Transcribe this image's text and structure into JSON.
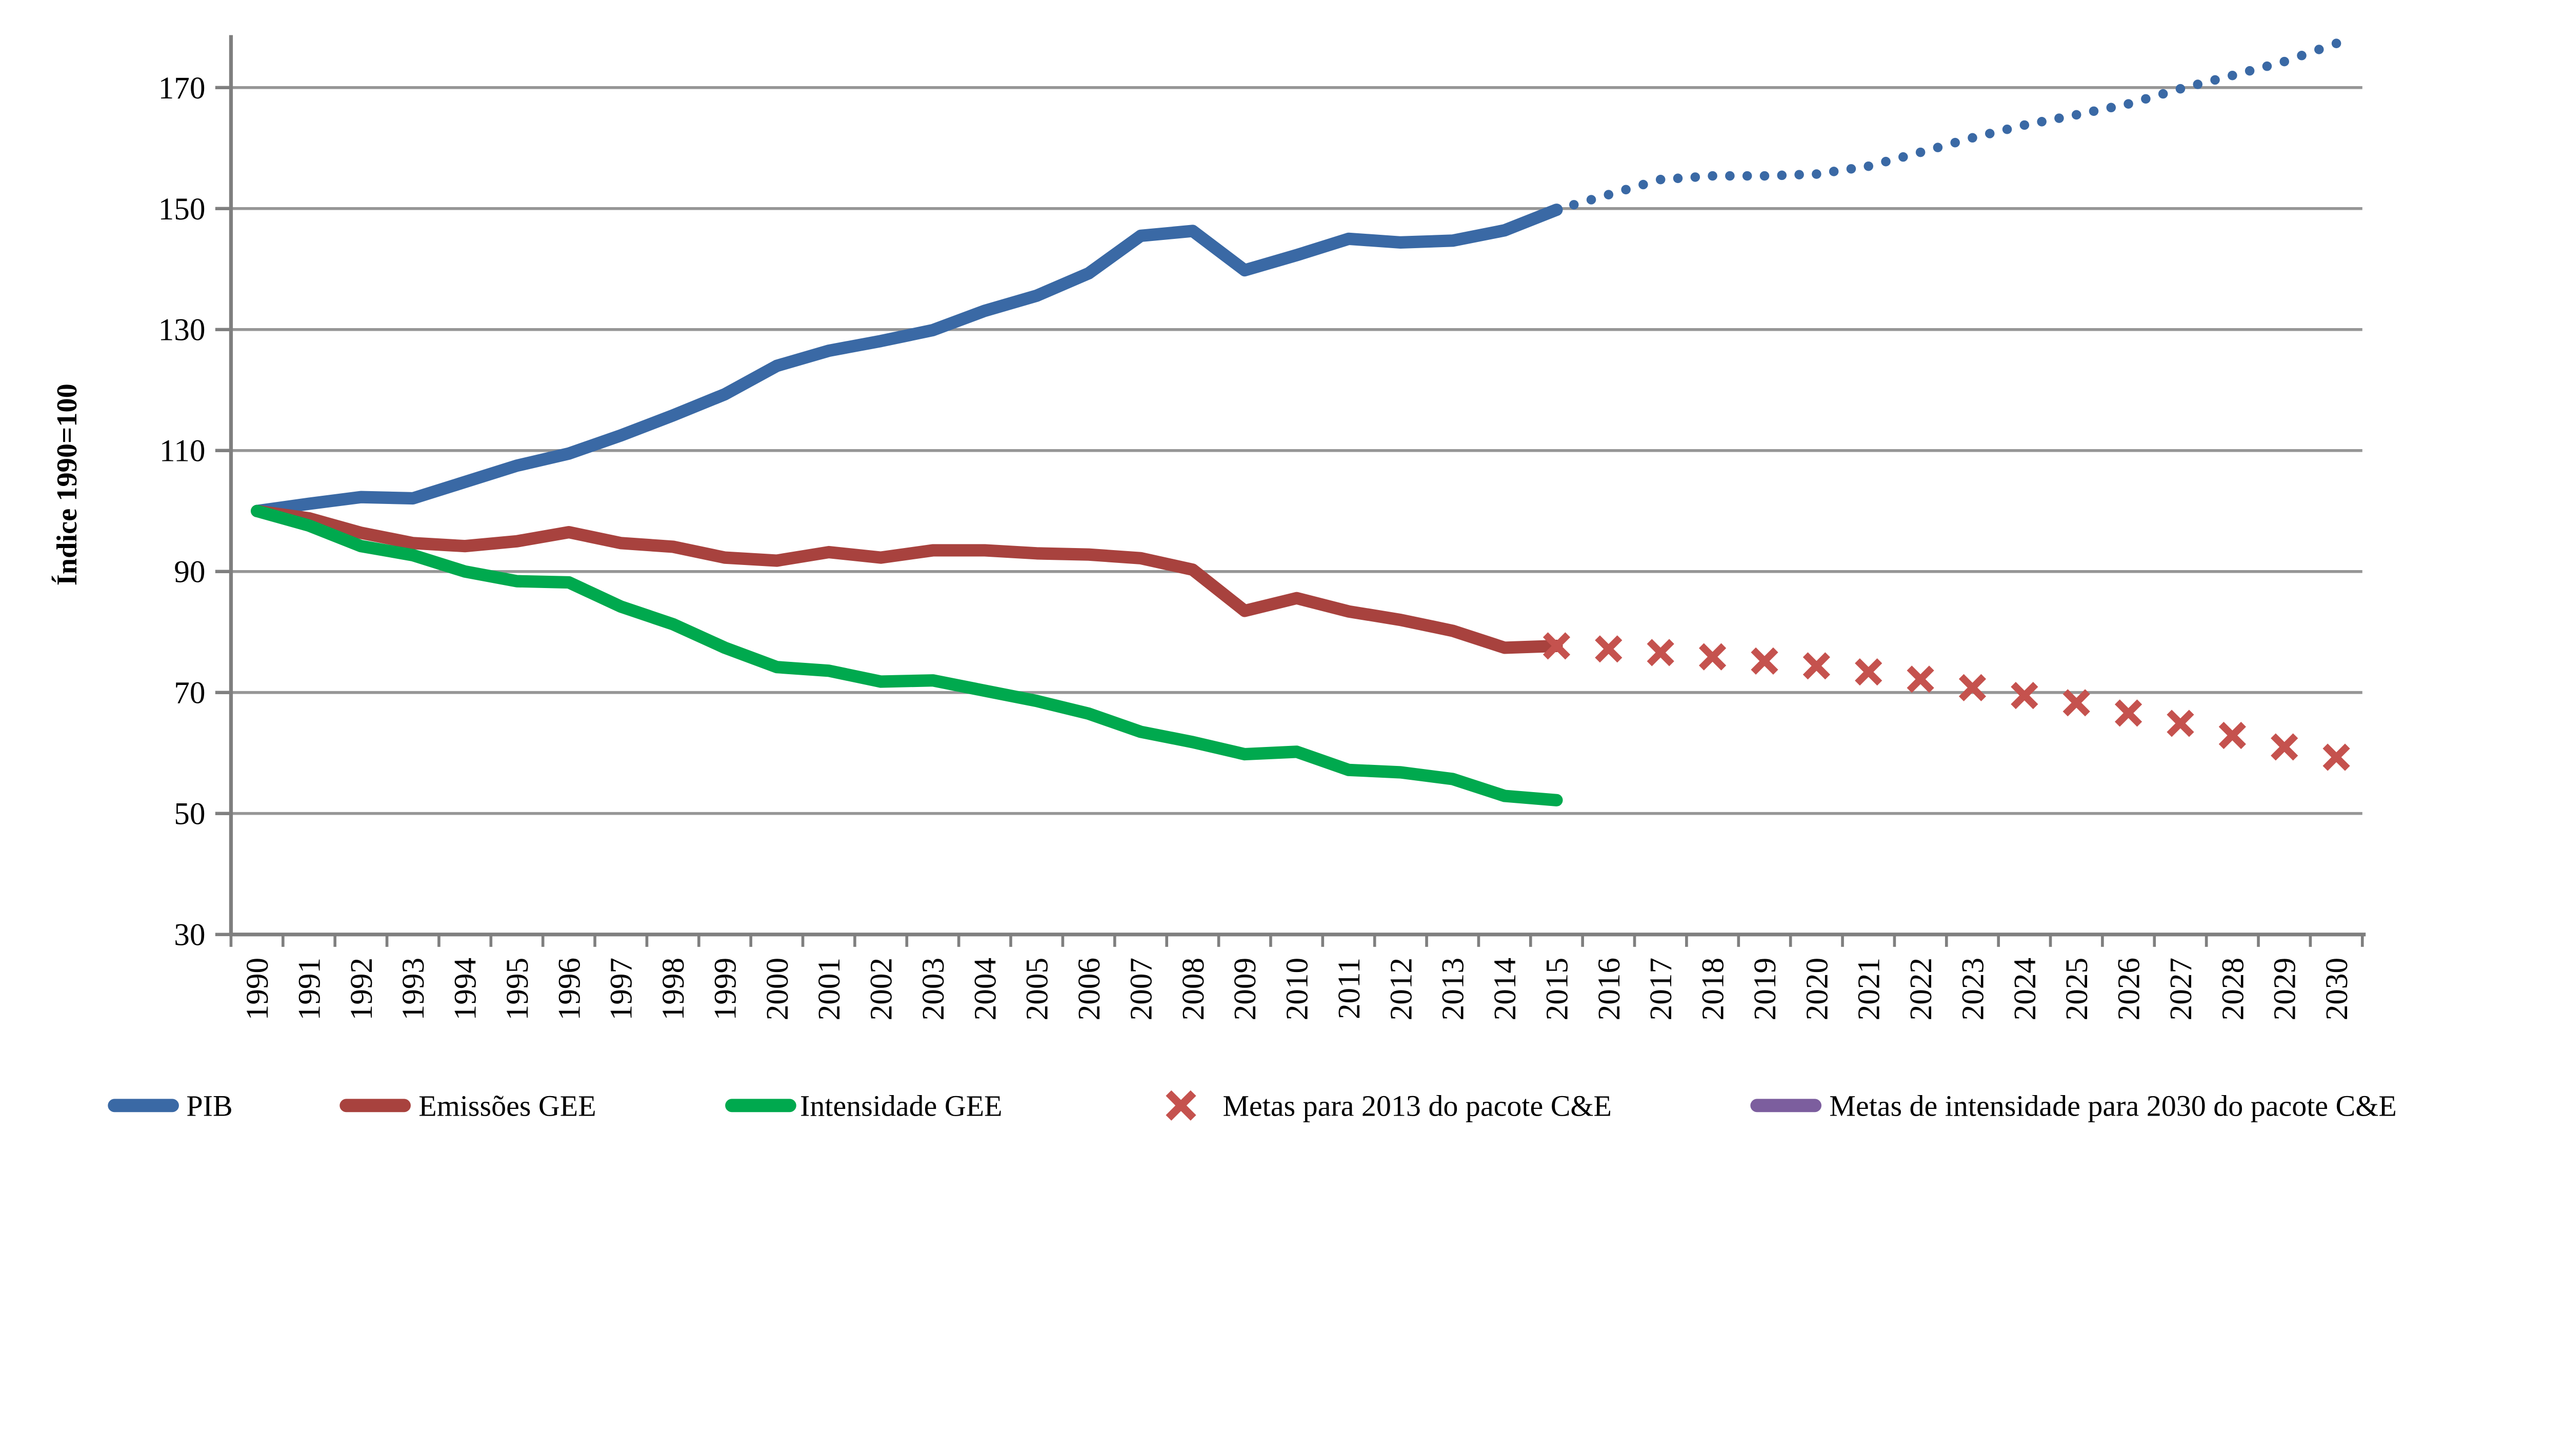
{
  "figure": {
    "background": "#FFFFFF"
  },
  "chart_data": {
    "type": "line",
    "title": "",
    "xlabel": "",
    "ylabel": "Índice 1990=100",
    "ylim": [
      30,
      182
    ],
    "yticks": [
      30,
      50,
      70,
      90,
      110,
      130,
      150,
      170
    ],
    "grid": true,
    "legend_position": "bottom",
    "axis_color": "#7F7F7F",
    "grid_color": "#969696",
    "categories": [
      "1990",
      "1991",
      "1992",
      "1993",
      "1994",
      "1995",
      "1996",
      "1997",
      "1998",
      "1999",
      "2000",
      "2001",
      "2002",
      "2003",
      "2004",
      "2005",
      "2006",
      "2007",
      "2008",
      "2009",
      "2010",
      "2011",
      "2012",
      "2013",
      "2014",
      "2015",
      "2016",
      "2017",
      "2018",
      "2019",
      "2020",
      "2021",
      "2022",
      "2023",
      "2024",
      "2025",
      "2026",
      "2027",
      "2028",
      "2029",
      "2030"
    ],
    "series": [
      {
        "name": "PIB",
        "type": "line",
        "style": "solid",
        "color": "#3A69A5",
        "start_year": 1990,
        "values": [
          100.0,
          101.2,
          102.3,
          102.1,
          104.8,
          107.5,
          109.5,
          112.5,
          115.8,
          119.3,
          124.0,
          126.5,
          128.1,
          129.9,
          133.1,
          135.6,
          139.3,
          145.5,
          146.3,
          139.8,
          142.3,
          145.0,
          144.4,
          144.7,
          146.4,
          149.8
        ]
      },
      {
        "name": "PIB (projeção)",
        "type": "line",
        "style": "dotted",
        "color": "#3A69A5",
        "start_year": 2015,
        "show_in_legend": false,
        "values": [
          149.8,
          152.3,
          154.8,
          155.4,
          155.4,
          155.7,
          157.0,
          159.3,
          161.7,
          163.8,
          165.5,
          167.3,
          169.8,
          172.0,
          174.3,
          177.3
        ]
      },
      {
        "name": "Emissões GEE",
        "type": "line",
        "style": "solid",
        "color": "#A8423E",
        "start_year": 1990,
        "values": [
          100.0,
          98.8,
          96.4,
          94.7,
          94.2,
          95.0,
          96.5,
          94.7,
          94.1,
          92.3,
          91.8,
          93.2,
          92.3,
          93.5,
          93.5,
          93.0,
          92.8,
          92.2,
          90.3,
          83.5,
          85.6,
          83.4,
          82.0,
          80.2,
          77.4,
          77.7
        ]
      },
      {
        "name": "Intensidade GEE",
        "type": "line",
        "style": "solid",
        "color": "#00A94E",
        "start_year": 1990,
        "values": [
          100.0,
          97.6,
          94.2,
          92.7,
          90.0,
          88.4,
          88.2,
          84.2,
          81.3,
          77.4,
          74.2,
          73.6,
          71.8,
          72.0,
          70.3,
          68.6,
          66.5,
          63.5,
          61.8,
          59.8,
          60.2,
          57.2,
          56.8,
          55.7,
          52.9,
          52.2
        ]
      },
      {
        "name": "Metas para 2013 do pacote C&E",
        "type": "scatter",
        "marker": "x",
        "color": "#C5524E",
        "start_year": 2015,
        "values": [
          77.7,
          77.2,
          76.6,
          75.9,
          75.2,
          74.4,
          73.4,
          72.2,
          70.8,
          69.5,
          68.3,
          66.6,
          64.9,
          62.9,
          61.0,
          59.3
        ]
      },
      {
        "name": "Metas de intensidade para 2030 do pacote C&E",
        "type": "line",
        "style": "solid",
        "color": "#7C5E9E",
        "start_year": 2030,
        "values": []
      }
    ],
    "legend": [
      {
        "label": "PIB",
        "swatch": "line",
        "color": "#3A69A5"
      },
      {
        "label": "Emissões GEE",
        "swatch": "line",
        "color": "#A8423E"
      },
      {
        "label": "Intensidade GEE",
        "swatch": "line",
        "color": "#00A94E"
      },
      {
        "label": "Metas para 2013 do pacote C&E",
        "swatch": "x",
        "color": "#C5524E"
      },
      {
        "label": "Metas de intensidade para 2030 do pacote C&E",
        "swatch": "line",
        "color": "#7C5E9E"
      }
    ]
  }
}
